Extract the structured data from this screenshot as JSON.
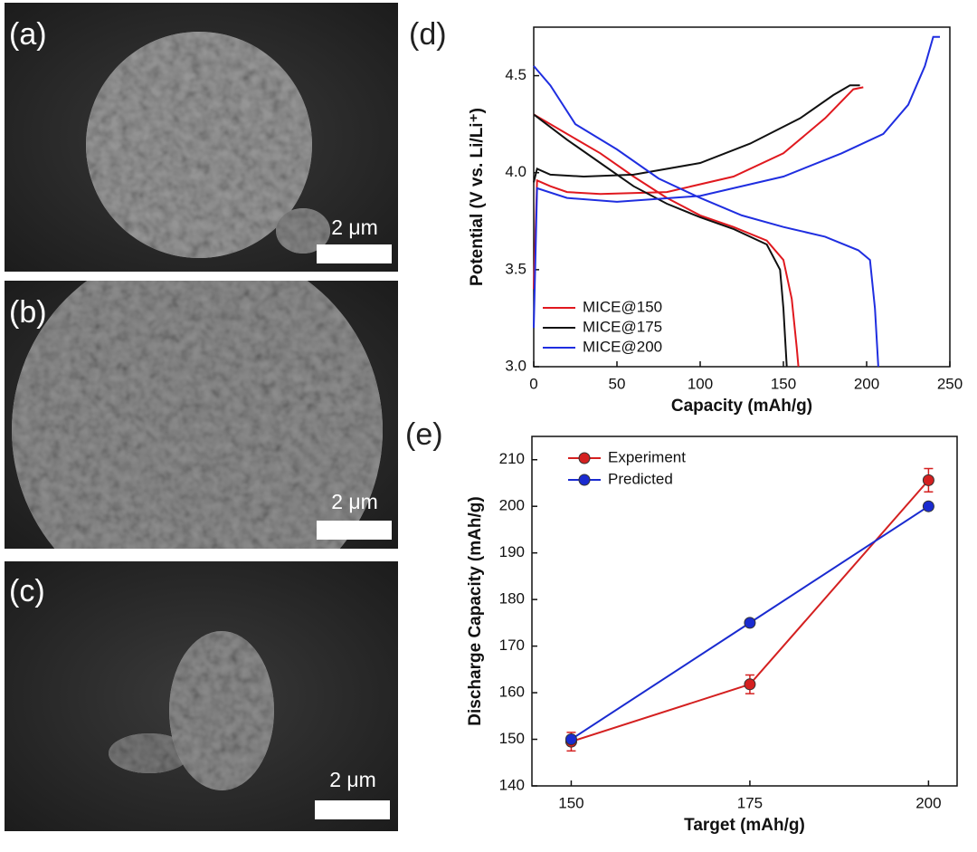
{
  "images": [
    {
      "label": "(a)",
      "scale_bar": "2 μm"
    },
    {
      "label": "(b)",
      "scale_bar": "2 μm"
    },
    {
      "label": "(c)",
      "scale_bar": "2 μm"
    }
  ],
  "chart_data": [
    {
      "type": "line",
      "panel_label": "(d)",
      "x_label": "Capacity (mAh/g)",
      "y_label": "Potential (V vs. Li/Li⁺)",
      "xlim": [
        0,
        250
      ],
      "ylim": [
        3.0,
        4.75
      ],
      "xticks": [
        0,
        50,
        100,
        150,
        200,
        250
      ],
      "yticks": [
        {
          "value": 3,
          "label": "3.0"
        },
        3.5,
        {
          "value": 4,
          "label": "4.0"
        },
        4.5
      ],
      "series": [
        {
          "name": "MICE@150",
          "color": "#e0191f",
          "x": [
            0,
            20,
            40,
            60,
            80,
            100,
            120,
            140,
            150,
            155,
            158,
            159,
            null,
            0,
            2,
            10,
            20,
            40,
            80,
            120,
            150,
            175,
            192,
            198
          ],
          "values": [
            4.3,
            4.2,
            4.1,
            3.98,
            3.87,
            3.78,
            3.72,
            3.65,
            3.55,
            3.35,
            3.1,
            3.0,
            null,
            3.4,
            3.96,
            3.93,
            3.9,
            3.89,
            3.9,
            3.98,
            4.1,
            4.28,
            4.43,
            4.44
          ]
        },
        {
          "name": "MICE@175",
          "color": "#111111",
          "x": [
            0,
            20,
            40,
            60,
            80,
            100,
            120,
            140,
            148,
            150,
            152,
            null,
            0,
            2,
            10,
            30,
            60,
            100,
            130,
            160,
            180,
            190,
            196
          ],
          "values": [
            4.3,
            4.17,
            4.05,
            3.93,
            3.84,
            3.77,
            3.71,
            3.63,
            3.5,
            3.3,
            3.0,
            null,
            3.95,
            4.02,
            3.99,
            3.98,
            3.99,
            4.05,
            4.15,
            4.28,
            4.4,
            4.45,
            4.45
          ]
        },
        {
          "name": "MICE@200",
          "color": "#1f2ee0",
          "x": [
            0,
            10,
            25,
            50,
            75,
            100,
            125,
            150,
            175,
            195,
            202,
            205,
            207,
            null,
            0,
            2,
            20,
            50,
            100,
            150,
            185,
            210,
            225,
            235,
            240,
            244
          ],
          "values": [
            4.55,
            4.45,
            4.25,
            4.12,
            3.97,
            3.87,
            3.78,
            3.72,
            3.67,
            3.6,
            3.55,
            3.3,
            3.0,
            null,
            3.2,
            3.92,
            3.87,
            3.85,
            3.88,
            3.98,
            4.1,
            4.2,
            4.35,
            4.55,
            4.7,
            4.7
          ]
        }
      ]
    },
    {
      "type": "line",
      "panel_label": "(e)",
      "x_label": "Target (mAh/g)",
      "y_label": "Discharge Capacity (mAh/g)",
      "xlim": [
        144.5,
        204
      ],
      "ylim": [
        140,
        215
      ],
      "xticks": [
        150,
        175,
        200
      ],
      "yticks": [
        140,
        150,
        160,
        170,
        180,
        190,
        200,
        210
      ],
      "markers": true,
      "series": [
        {
          "name": "Experiment",
          "color": "#d42020",
          "x": [
            150,
            175,
            200
          ],
          "values": [
            149.5,
            161.8,
            205.6
          ],
          "errors": [
            2,
            2,
            2.5
          ]
        },
        {
          "name": "Predicted",
          "color": "#1a2bd0",
          "x": [
            150,
            175,
            200
          ],
          "values": [
            150,
            175,
            200
          ]
        }
      ]
    }
  ]
}
